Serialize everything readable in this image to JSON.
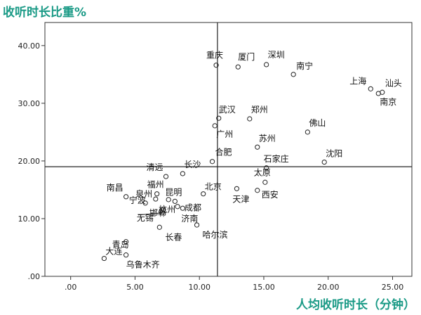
{
  "chart_data": {
    "type": "scatter",
    "ylabel": "收听时长比重%",
    "xlabel": "人均收听时长（分钟）",
    "xlim": [
      -2,
      26.5
    ],
    "ylim": [
      0,
      44
    ],
    "x_ticks": [
      0,
      5,
      10,
      15,
      20,
      25
    ],
    "y_ticks": [
      0,
      10,
      20,
      30,
      40
    ],
    "x_tick_labels": [
      ".00",
      "5.00",
      "10.00",
      "15.00",
      "20.00",
      "25.00"
    ],
    "y_tick_labels": [
      ".00",
      "10.00",
      "20.00",
      "30.00",
      "40.00"
    ],
    "reference_lines": {
      "x": 11.4,
      "y": 19.0
    },
    "grid": false,
    "points": [
      {
        "label": "重庆",
        "x": 11.3,
        "y": 36.6
      },
      {
        "label": "厦门",
        "x": 13.0,
        "y": 36.3
      },
      {
        "label": "深圳",
        "x": 15.2,
        "y": 36.7
      },
      {
        "label": "南宁",
        "x": 17.3,
        "y": 35.0
      },
      {
        "label": "上海",
        "x": 23.3,
        "y": 32.5
      },
      {
        "label": "汕头",
        "x": 24.2,
        "y": 31.9
      },
      {
        "label": "南京",
        "x": 23.9,
        "y": 31.7
      },
      {
        "label": "武汉",
        "x": 11.5,
        "y": 27.4
      },
      {
        "label": "郑州",
        "x": 13.9,
        "y": 27.3
      },
      {
        "label": "广州",
        "x": 11.2,
        "y": 26.1
      },
      {
        "label": "佛山",
        "x": 18.4,
        "y": 25.0
      },
      {
        "label": "苏州",
        "x": 14.5,
        "y": 22.4
      },
      {
        "label": "合肥",
        "x": 11.0,
        "y": 19.9
      },
      {
        "label": "沈阳",
        "x": 19.7,
        "y": 19.8
      },
      {
        "label": "石家庄",
        "x": 15.2,
        "y": 18.8
      },
      {
        "label": "清远",
        "x": 7.4,
        "y": 17.3
      },
      {
        "label": "长沙",
        "x": 8.7,
        "y": 17.8
      },
      {
        "label": "北京",
        "x": 10.3,
        "y": 14.3
      },
      {
        "label": "太原",
        "x": 15.1,
        "y": 16.3
      },
      {
        "label": "天津",
        "x": 12.9,
        "y": 15.2
      },
      {
        "label": "西安",
        "x": 14.5,
        "y": 14.9
      },
      {
        "label": "南昌",
        "x": 4.3,
        "y": 13.8
      },
      {
        "label": "泉州",
        "x": 5.8,
        "y": 12.7
      },
      {
        "label": "福州",
        "x": 6.7,
        "y": 14.3
      },
      {
        "label": "昆明",
        "x": 8.1,
        "y": 13.0
      },
      {
        "label": "成都",
        "x": 8.3,
        "y": 12.1
      },
      {
        "label": "宁波",
        "x": 6.6,
        "y": 13.4
      },
      {
        "label": "无锡",
        "x": 7.2,
        "y": 11.6
      },
      {
        "label": "邯郸",
        "x": 7.1,
        "y": 11.0
      },
      {
        "label": "杭州",
        "x": 7.6,
        "y": 13.3
      },
      {
        "label": "济南",
        "x": 8.7,
        "y": 11.8
      },
      {
        "label": "长春",
        "x": 6.9,
        "y": 8.5
      },
      {
        "label": "哈尔滨",
        "x": 9.8,
        "y": 8.9
      },
      {
        "label": "青岛",
        "x": 4.3,
        "y": 6.0
      },
      {
        "label": "大连",
        "x": 2.6,
        "y": 3.1
      },
      {
        "label": "乌鲁木齐",
        "x": 4.3,
        "y": 3.7
      }
    ]
  }
}
